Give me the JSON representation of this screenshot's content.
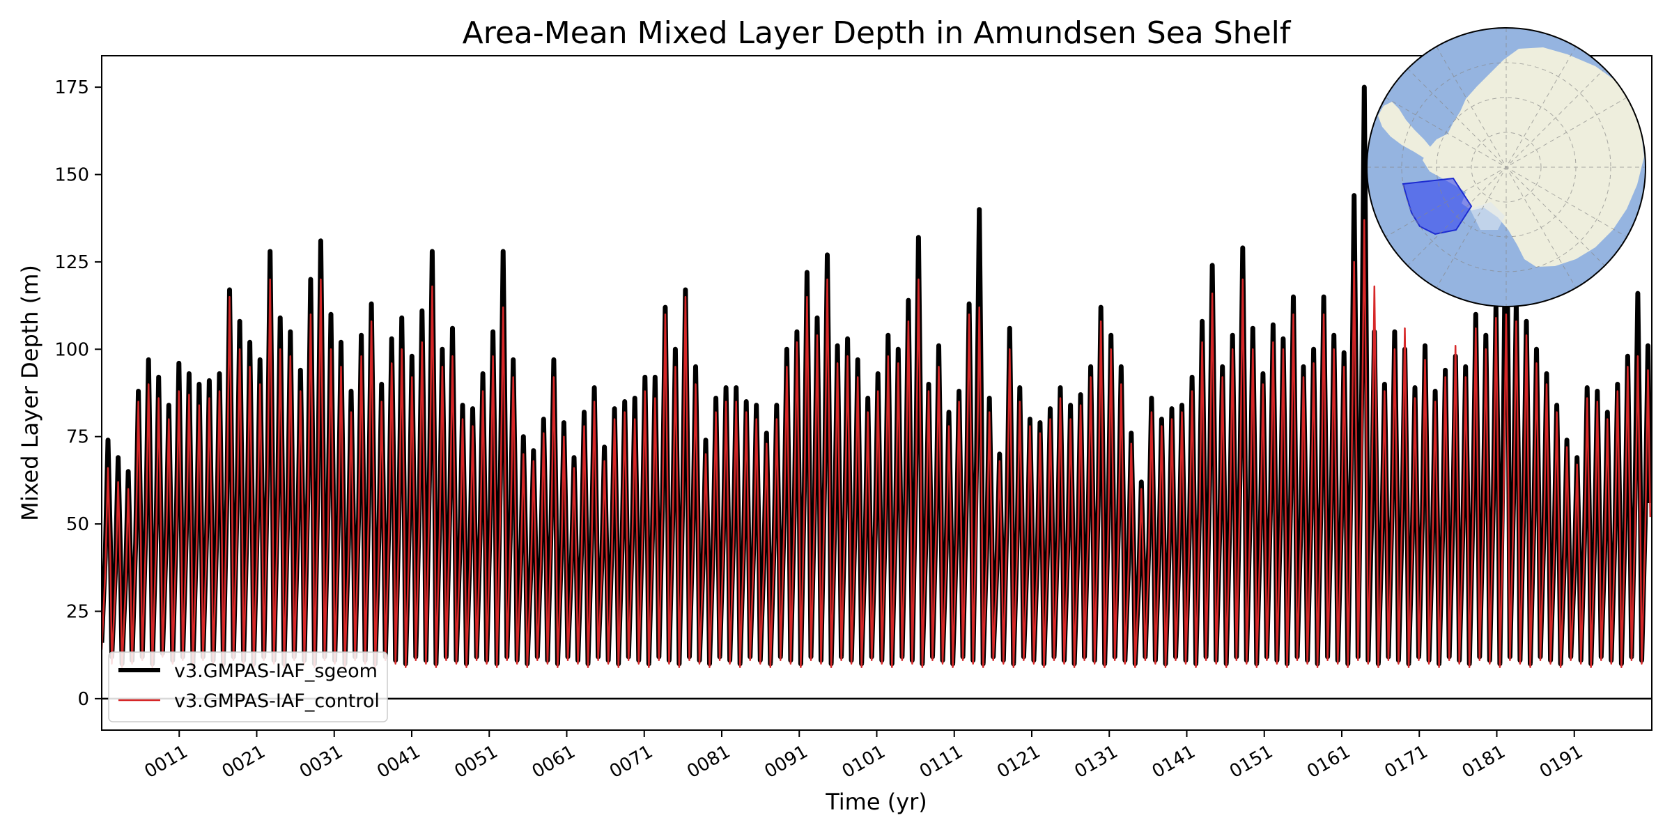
{
  "chart_data": {
    "type": "line",
    "title": "Area-Mean Mixed Layer Depth in Amundsen Sea Shelf",
    "xlabel": "Time (yr)",
    "ylabel": "Mixed Layer Depth (m)",
    "xlim": [
      1,
      201
    ],
    "ylim": [
      -9,
      184
    ],
    "x_ticks": [
      11,
      21,
      31,
      41,
      51,
      61,
      71,
      81,
      91,
      101,
      111,
      121,
      131,
      141,
      151,
      161,
      171,
      181,
      191
    ],
    "x_tick_labels": [
      "0011",
      "0021",
      "0031",
      "0041",
      "0051",
      "0061",
      "0071",
      "0081",
      "0091",
      "0101",
      "0111",
      "0121",
      "0131",
      "0141",
      "0151",
      "0161",
      "0171",
      "0181",
      "0191"
    ],
    "y_ticks": [
      0,
      25,
      50,
      75,
      100,
      125,
      150,
      175
    ],
    "y_tick_labels": [
      "0",
      "25",
      "50",
      "75",
      "100",
      "125",
      "150",
      "175"
    ],
    "zero_line": 0,
    "grid": false,
    "legend_position": "lower-left",
    "sampling": "annual cycle: one winter maximum and one summer minimum per model year",
    "series": [
      {
        "name": "v3.GMPAS-IAF_sgeom",
        "color": "#000000",
        "annual_max": [
          74,
          69,
          65,
          88,
          97,
          92,
          84,
          96,
          93,
          90,
          91,
          93,
          117,
          108,
          102,
          97,
          128,
          109,
          105,
          94,
          120,
          131,
          110,
          102,
          88,
          104,
          113,
          90,
          103,
          109,
          98,
          111,
          128,
          100,
          106,
          84,
          83,
          93,
          105,
          128,
          97,
          75,
          71,
          80,
          97,
          79,
          69,
          82,
          89,
          72,
          83,
          85,
          86,
          92,
          92,
          112,
          100,
          117,
          95,
          74,
          86,
          89,
          89,
          85,
          84,
          76,
          84,
          100,
          105,
          122,
          109,
          127,
          101,
          103,
          97,
          86,
          93,
          104,
          100,
          114,
          132,
          90,
          101,
          82,
          88,
          113,
          140,
          86,
          70,
          106,
          89,
          80,
          79,
          83,
          89,
          84,
          87,
          95,
          112,
          104,
          95,
          76,
          62,
          86,
          80,
          83,
          84,
          92,
          108,
          124,
          95,
          104,
          129,
          106,
          93,
          107,
          103,
          115,
          95,
          100,
          115,
          104,
          99,
          144,
          175,
          105,
          90,
          105,
          100,
          89,
          101,
          88,
          94,
          98,
          95,
          110,
          104,
          112,
          158,
          113,
          108,
          100,
          93,
          84,
          74,
          69,
          89,
          88,
          82,
          90,
          98,
          116,
          101
        ],
        "annual_min": [
          16,
          12,
          10,
          11,
          12,
          10,
          13,
          11,
          12,
          10,
          12,
          11,
          10,
          12,
          11,
          10,
          12,
          11,
          10,
          12,
          11,
          10,
          12,
          11,
          10,
          12,
          11,
          10,
          12,
          11,
          10,
          12,
          11,
          10,
          12,
          11,
          10,
          12,
          11,
          10,
          12,
          11,
          10,
          12,
          11,
          10,
          12,
          11,
          10,
          12,
          11,
          10,
          12,
          11,
          10,
          12,
          11,
          10,
          12,
          11,
          10,
          12,
          11,
          10,
          12,
          11,
          10,
          12,
          11,
          10,
          12,
          11,
          10,
          12,
          11,
          10,
          12,
          11,
          10,
          12,
          11,
          10,
          12,
          11,
          10,
          12,
          11,
          10,
          12,
          11,
          10,
          12,
          11,
          10,
          12,
          11,
          10,
          12,
          11,
          10,
          12,
          11,
          10,
          12,
          11,
          10,
          12,
          11,
          10,
          12,
          11,
          10,
          12,
          11,
          10,
          12,
          11,
          10,
          12,
          11,
          10,
          12,
          11,
          10,
          12,
          11,
          10,
          12,
          11,
          10,
          12,
          11,
          10,
          12,
          11,
          10,
          12,
          11,
          10,
          12,
          11,
          10,
          12,
          11,
          10,
          12,
          11,
          10,
          12,
          11,
          10,
          12,
          11
        ]
      },
      {
        "name": "v3.GMPAS-IAF_control",
        "color": "#d62728",
        "annual_max": [
          66,
          62,
          60,
          85,
          90,
          86,
          80,
          88,
          87,
          84,
          86,
          88,
          115,
          100,
          95,
          90,
          120,
          100,
          98,
          88,
          110,
          120,
          100,
          95,
          82,
          98,
          108,
          85,
          96,
          100,
          92,
          102,
          118,
          95,
          98,
          80,
          78,
          88,
          98,
          112,
          92,
          70,
          68,
          76,
          92,
          75,
          66,
          78,
          85,
          68,
          80,
          82,
          80,
          88,
          86,
          110,
          95,
          115,
          90,
          70,
          82,
          85,
          85,
          82,
          80,
          73,
          80,
          95,
          102,
          115,
          104,
          120,
          96,
          98,
          92,
          82,
          88,
          98,
          96,
          108,
          120,
          88,
          95,
          78,
          85,
          110,
          112,
          82,
          68,
          100,
          85,
          78,
          76,
          80,
          86,
          80,
          84,
          92,
          108,
          100,
          90,
          73,
          60,
          82,
          78,
          80,
          82,
          88,
          102,
          116,
          92,
          100,
          120,
          100,
          90,
          102,
          100,
          110,
          92,
          96,
          110,
          100,
          95,
          125,
          137,
          118,
          88,
          100,
          106,
          86,
          97,
          85,
          92,
          101,
          92,
          106,
          100,
          109,
          110,
          108,
          104,
          96,
          90,
          82,
          72,
          67,
          86,
          85,
          80,
          88,
          95,
          98,
          94
        ],
        "annual_min": [
          14,
          10,
          9,
          10,
          11,
          9,
          12,
          10,
          11,
          9,
          11,
          10,
          9,
          11,
          10,
          9,
          11,
          10,
          9,
          11,
          10,
          9,
          11,
          10,
          9,
          11,
          10,
          9,
          11,
          10,
          9,
          11,
          10,
          9,
          11,
          10,
          9,
          11,
          10,
          9,
          11,
          10,
          9,
          11,
          10,
          9,
          11,
          10,
          9,
          11,
          10,
          9,
          11,
          10,
          9,
          11,
          10,
          9,
          11,
          10,
          9,
          11,
          10,
          9,
          11,
          10,
          9,
          11,
          10,
          9,
          11,
          10,
          9,
          11,
          10,
          9,
          11,
          10,
          9,
          11,
          10,
          9,
          11,
          10,
          9,
          11,
          10,
          9,
          11,
          10,
          9,
          11,
          10,
          9,
          11,
          10,
          9,
          11,
          10,
          9,
          11,
          10,
          9,
          11,
          10,
          9,
          11,
          10,
          9,
          11,
          10,
          9,
          11,
          10,
          9,
          11,
          10,
          9,
          11,
          10,
          9,
          11,
          10,
          9,
          11,
          10,
          9,
          11,
          10,
          9,
          11,
          10,
          9,
          11,
          10,
          9,
          11,
          10,
          9,
          11,
          10,
          9,
          11,
          10,
          9,
          11,
          10,
          9,
          11,
          10,
          9,
          11,
          10
        ]
      }
    ],
    "inset_map": {
      "projection": "south-polar stereographic",
      "region_highlight": "Amundsen Sea Shelf",
      "ocean_color": "#95b4e0",
      "land_color": "#eeeedd",
      "highlight_color": "#2b3cf0"
    }
  }
}
